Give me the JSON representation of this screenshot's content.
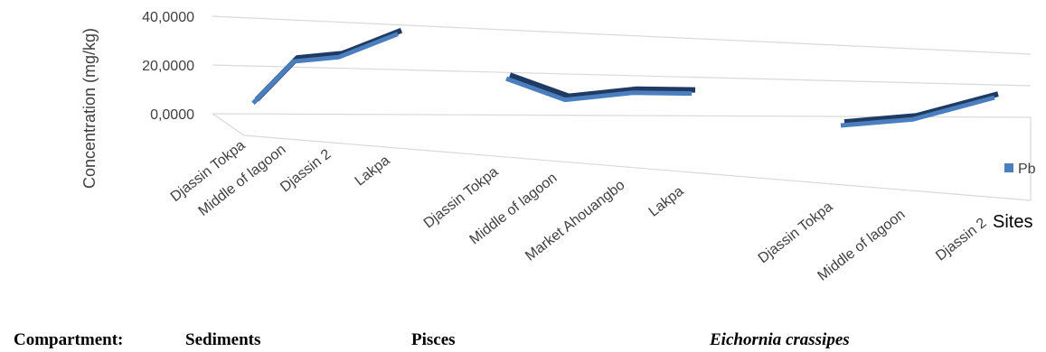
{
  "chart_data": {
    "type": "line",
    "y_label": "Concentration (mg/kg)",
    "x_label": "Sites",
    "categories": [
      "Djassin Tokpa",
      "Middle of lagoon",
      "Djassin 2",
      "Lakpa",
      "Djassin Tokpa",
      "Middle of lagoon",
      "Market Ahouangbo",
      "Lakpa",
      "Djassin Tokpa",
      "Middle of lagoon",
      "Djassin 2"
    ],
    "series": [
      {
        "name": "Pb",
        "color": "#4a7ebf",
        "values": [
          2,
          21,
          24,
          36,
          18,
          9,
          14,
          15,
          1,
          6,
          21
        ]
      }
    ],
    "ylim": [
      0,
      40
    ],
    "yticks": [
      {
        "value": 0,
        "label": "0,0000"
      },
      {
        "value": 20,
        "label": "20,0000"
      },
      {
        "value": 40,
        "label": "40,0000"
      }
    ],
    "grid": true,
    "legend": "right"
  },
  "compartments": {
    "label": "Compartment:",
    "groups": [
      "Sediments",
      "Pisces",
      "Eichornia crassipes"
    ]
  }
}
